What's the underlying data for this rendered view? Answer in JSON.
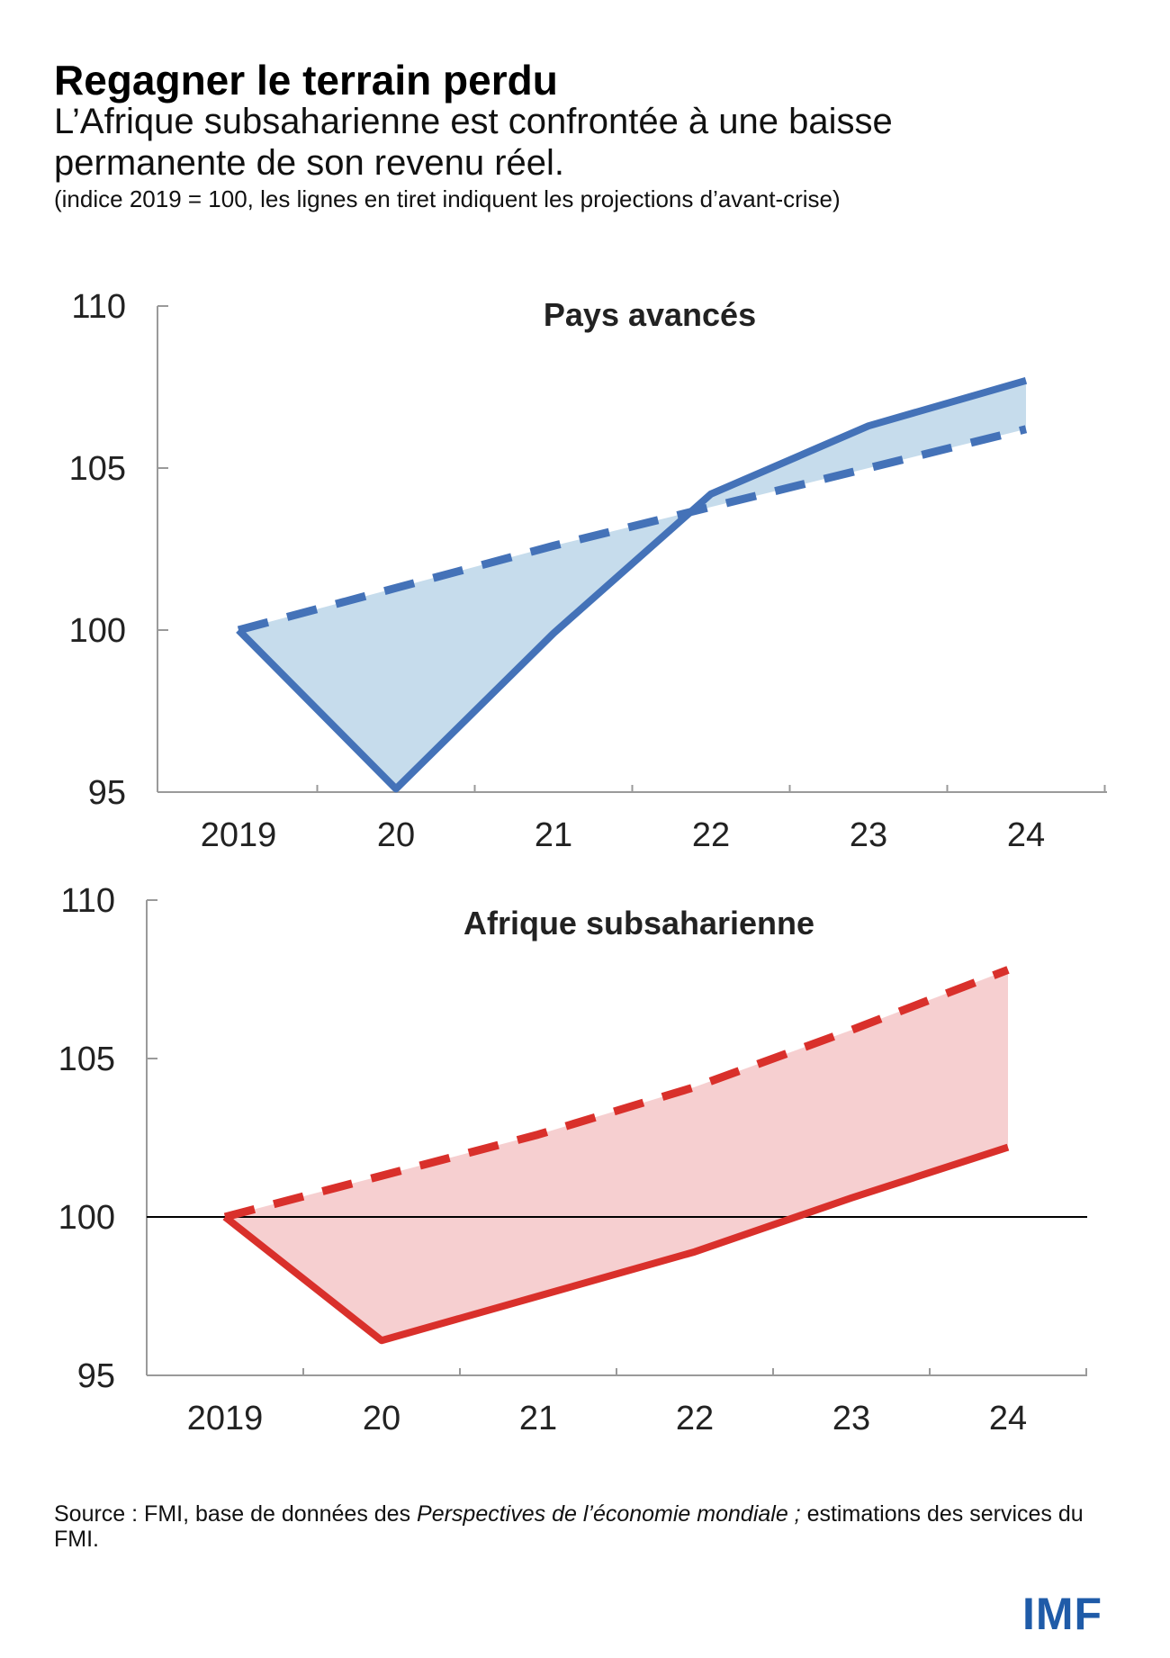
{
  "header": {
    "title": "Regagner le terrain perdu",
    "subtitle": "L’Afrique subsaharienne est confrontée à une baisse permanente de son revenu réel.",
    "note": "(indice 2019 = 100, les lignes en tiret indiquent les projections d’avant-crise)"
  },
  "footer": {
    "source_prefix": "Source : FMI, base de données des ",
    "source_italic": "Perspectives de l’économie mondiale ;",
    "source_suffix": " estimations des services du FMI.",
    "logo": "IMF"
  },
  "colors": {
    "blue_line": "#4472b8",
    "blue_fill": "#c6dcec",
    "red_line": "#d9302b",
    "red_fill": "#f6cfd0",
    "axis": "#9a9a9a",
    "baseline": "#000000",
    "logo": "#1f5ba8"
  },
  "chart_data": [
    {
      "type": "line",
      "title": "Pays avancés",
      "categories": [
        "2019",
        "20",
        "21",
        "22",
        "23",
        "24"
      ],
      "ylim": [
        95,
        110
      ],
      "yticks": [
        "110",
        "105",
        "100",
        "95"
      ],
      "shaded_gap": true,
      "baseline_100": false,
      "series": [
        {
          "style": "solid",
          "values": [
            100,
            95.1,
            99.9,
            104.2,
            106.3,
            107.7
          ]
        },
        {
          "style": "dashed",
          "values": [
            100,
            101.3,
            102.6,
            103.8,
            105.0,
            106.2
          ]
        }
      ]
    },
    {
      "type": "line",
      "title": "Afrique subsaharienne",
      "categories": [
        "2019",
        "20",
        "21",
        "22",
        "23",
        "24"
      ],
      "ylim": [
        95,
        110
      ],
      "yticks": [
        "110",
        "105",
        "100",
        "95"
      ],
      "shaded_gap": true,
      "baseline_100": true,
      "series": [
        {
          "style": "solid",
          "values": [
            100,
            96.1,
            97.5,
            98.9,
            100.6,
            102.2
          ]
        },
        {
          "style": "dashed",
          "values": [
            100,
            101.3,
            102.6,
            104.1,
            105.9,
            107.8
          ]
        }
      ]
    }
  ]
}
